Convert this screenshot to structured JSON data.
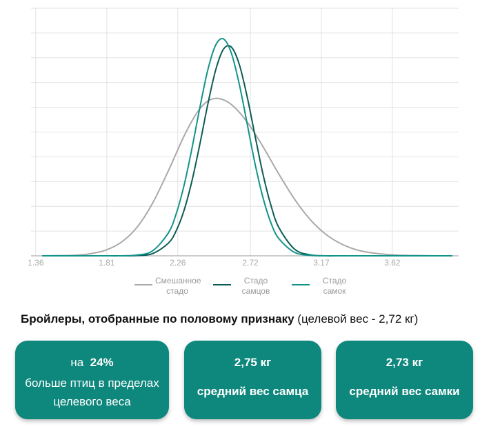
{
  "chart_data": {
    "type": "line",
    "x": [
      1.4,
      1.5,
      1.6,
      1.7,
      1.8,
      1.9,
      2.0,
      2.1,
      2.2,
      2.25,
      2.3,
      2.35,
      2.4,
      2.45,
      2.5,
      2.55,
      2.6,
      2.65,
      2.7,
      2.75,
      2.8,
      2.85,
      2.9,
      3.0,
      3.1,
      3.2,
      3.3,
      3.4,
      3.5,
      3.6,
      3.7,
      3.8,
      3.9,
      4.0
    ],
    "series": [
      {
        "name": "Смешанное стадо",
        "color": "#a9a9a9",
        "values": [
          0,
          0.01,
          0.02,
          0.08,
          0.22,
          0.54,
          1.14,
          2.12,
          3.43,
          4.14,
          4.84,
          5.45,
          5.94,
          6.25,
          6.36,
          6.3,
          6.11,
          5.8,
          5.4,
          4.93,
          4.41,
          3.86,
          3.31,
          2.29,
          1.46,
          0.86,
          0.47,
          0.23,
          0.11,
          0.05,
          0.02,
          0.01,
          0,
          0
        ]
      },
      {
        "name": "Стадо самцов",
        "color": "#0b5c55",
        "values": [
          0,
          0,
          0,
          0,
          0,
          0,
          0.01,
          0.09,
          0.51,
          1.01,
          1.84,
          3.03,
          4.51,
          6.11,
          7.5,
          8.35,
          8.43,
          7.73,
          6.42,
          4.84,
          3.3,
          2.05,
          1.15,
          0.27,
          0.04,
          0,
          0,
          0,
          0,
          0,
          0,
          0,
          0,
          0
        ]
      },
      {
        "name": "Стадо самок",
        "color": "#12938a",
        "values": [
          0,
          0,
          0,
          0,
          0,
          0,
          0.03,
          0.2,
          0.92,
          1.7,
          2.85,
          4.34,
          5.99,
          7.5,
          8.51,
          8.76,
          8.18,
          6.93,
          5.33,
          3.71,
          2.35,
          1.34,
          0.7,
          0.14,
          0.02,
          0,
          0,
          0,
          0,
          0,
          0,
          0,
          0,
          0
        ]
      }
    ],
    "xlim": [
      1.33,
      4.04
    ],
    "xticks": [
      1.36,
      1.81,
      2.26,
      2.72,
      3.17,
      3.62
    ],
    "ylim": [
      0,
      10
    ],
    "yticks": [
      0,
      1,
      2,
      3,
      4,
      5,
      6,
      7,
      8,
      9,
      10
    ],
    "grid": true
  },
  "subtitle": {
    "bold": "Бройлеры, отобранные по половому признаку",
    "normal": "(целевой вес - 2,72 кг)"
  },
  "cards": [
    {
      "prefix": "на",
      "value": "24%",
      "text": "больше птиц в пределах целевого веса"
    },
    {
      "value": "2,75 кг",
      "text": "средний вес самца"
    },
    {
      "value": "2,73 кг",
      "text": "средний вес самки"
    }
  ]
}
